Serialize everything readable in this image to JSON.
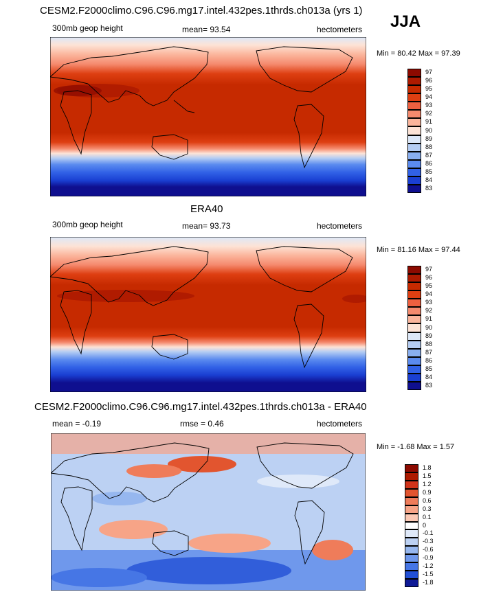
{
  "season": "JJA",
  "panels": [
    {
      "title": "CESM2.F2000climo.C96.C96.mg17.intel.432pes.1thrds.ch013a (yrs 1)",
      "left": "300mb geop height",
      "center": "mean=  93.54",
      "right": "hectometers",
      "minmax": "Min =  80.42 Max =  97.39",
      "colorbar": {
        "levels": [
          "97",
          "96",
          "95",
          "94",
          "93",
          "92",
          "91",
          "90",
          "89",
          "88",
          "87",
          "86",
          "85",
          "84",
          "83"
        ],
        "colors": [
          "#8c0a00",
          "#ad1a00",
          "#c62a00",
          "#de3f12",
          "#ee6040",
          "#f58a6e",
          "#fbb59c",
          "#fde3d6",
          "#dde8f8",
          "#b5cdf3",
          "#89aff0",
          "#5b8bef",
          "#3161e6",
          "#1a3fd2",
          "#0f0f8f"
        ]
      }
    },
    {
      "title": "ERA40",
      "left": "300mb geop height",
      "center": "mean=  93.73",
      "right": "hectometers",
      "minmax": "Min =  81.16 Max =  97.44",
      "colorbar": {
        "levels": [
          "97",
          "96",
          "95",
          "94",
          "93",
          "92",
          "91",
          "90",
          "89",
          "88",
          "87",
          "86",
          "85",
          "84",
          "83"
        ],
        "colors": [
          "#8c0a00",
          "#ad1a00",
          "#c62a00",
          "#de3f12",
          "#ee6040",
          "#f58a6e",
          "#fbb59c",
          "#fde3d6",
          "#dde8f8",
          "#b5cdf3",
          "#89aff0",
          "#5b8bef",
          "#3161e6",
          "#1a3fd2",
          "#0f0f8f"
        ]
      }
    },
    {
      "title": "CESM2.F2000climo.C96.C96.mg17.intel.432pes.1thrds.ch013a - ERA40",
      "left": "mean =  -0.19",
      "center": "rmse =   0.46",
      "right": "hectometers",
      "minmax": "Min =  -1.68 Max =   1.57",
      "colorbar": {
        "levels": [
          "1.8",
          "1.5",
          "1.2",
          "0.9",
          "0.6",
          "0.3",
          "0.1",
          "0",
          "-0.1",
          "-0.3",
          "-0.6",
          "-0.9",
          "-1.2",
          "-1.5",
          "-1.8"
        ],
        "colors": [
          "#8c0a00",
          "#ad1a00",
          "#d0331a",
          "#e2552f",
          "#ef7c5a",
          "#f7a487",
          "#fbc9b5",
          "#ffffff",
          "#dfe9f9",
          "#bcd1f3",
          "#96b7ef",
          "#6f98ec",
          "#4676e5",
          "#2250d6",
          "#0f1a96"
        ]
      }
    }
  ]
}
